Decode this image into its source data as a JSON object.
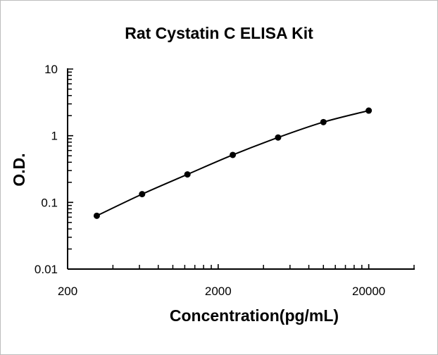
{
  "chart_data": {
    "type": "line",
    "title": "Rat Cystatin C ELISA Kit",
    "xlabel": "Concentration(pg/mL)",
    "ylabel": "O.D.",
    "x_scale": "log",
    "y_scale": "log",
    "xlim": [
      200,
      40000
    ],
    "ylim": [
      0.01,
      10
    ],
    "x_tick_labels": [
      "200",
      "2000",
      "20000"
    ],
    "y_tick_labels": [
      "0.01",
      "0.1",
      "1",
      "10"
    ],
    "grid": false,
    "legend": "none",
    "series": [
      {
        "x": [
          312.5,
          625,
          1250,
          2500,
          5000,
          10000,
          20000
        ],
        "y": [
          0.063,
          0.133,
          0.263,
          0.515,
          0.94,
          1.6,
          2.38
        ],
        "color": "#000000",
        "marker": "circle",
        "smooth": true
      }
    ]
  }
}
